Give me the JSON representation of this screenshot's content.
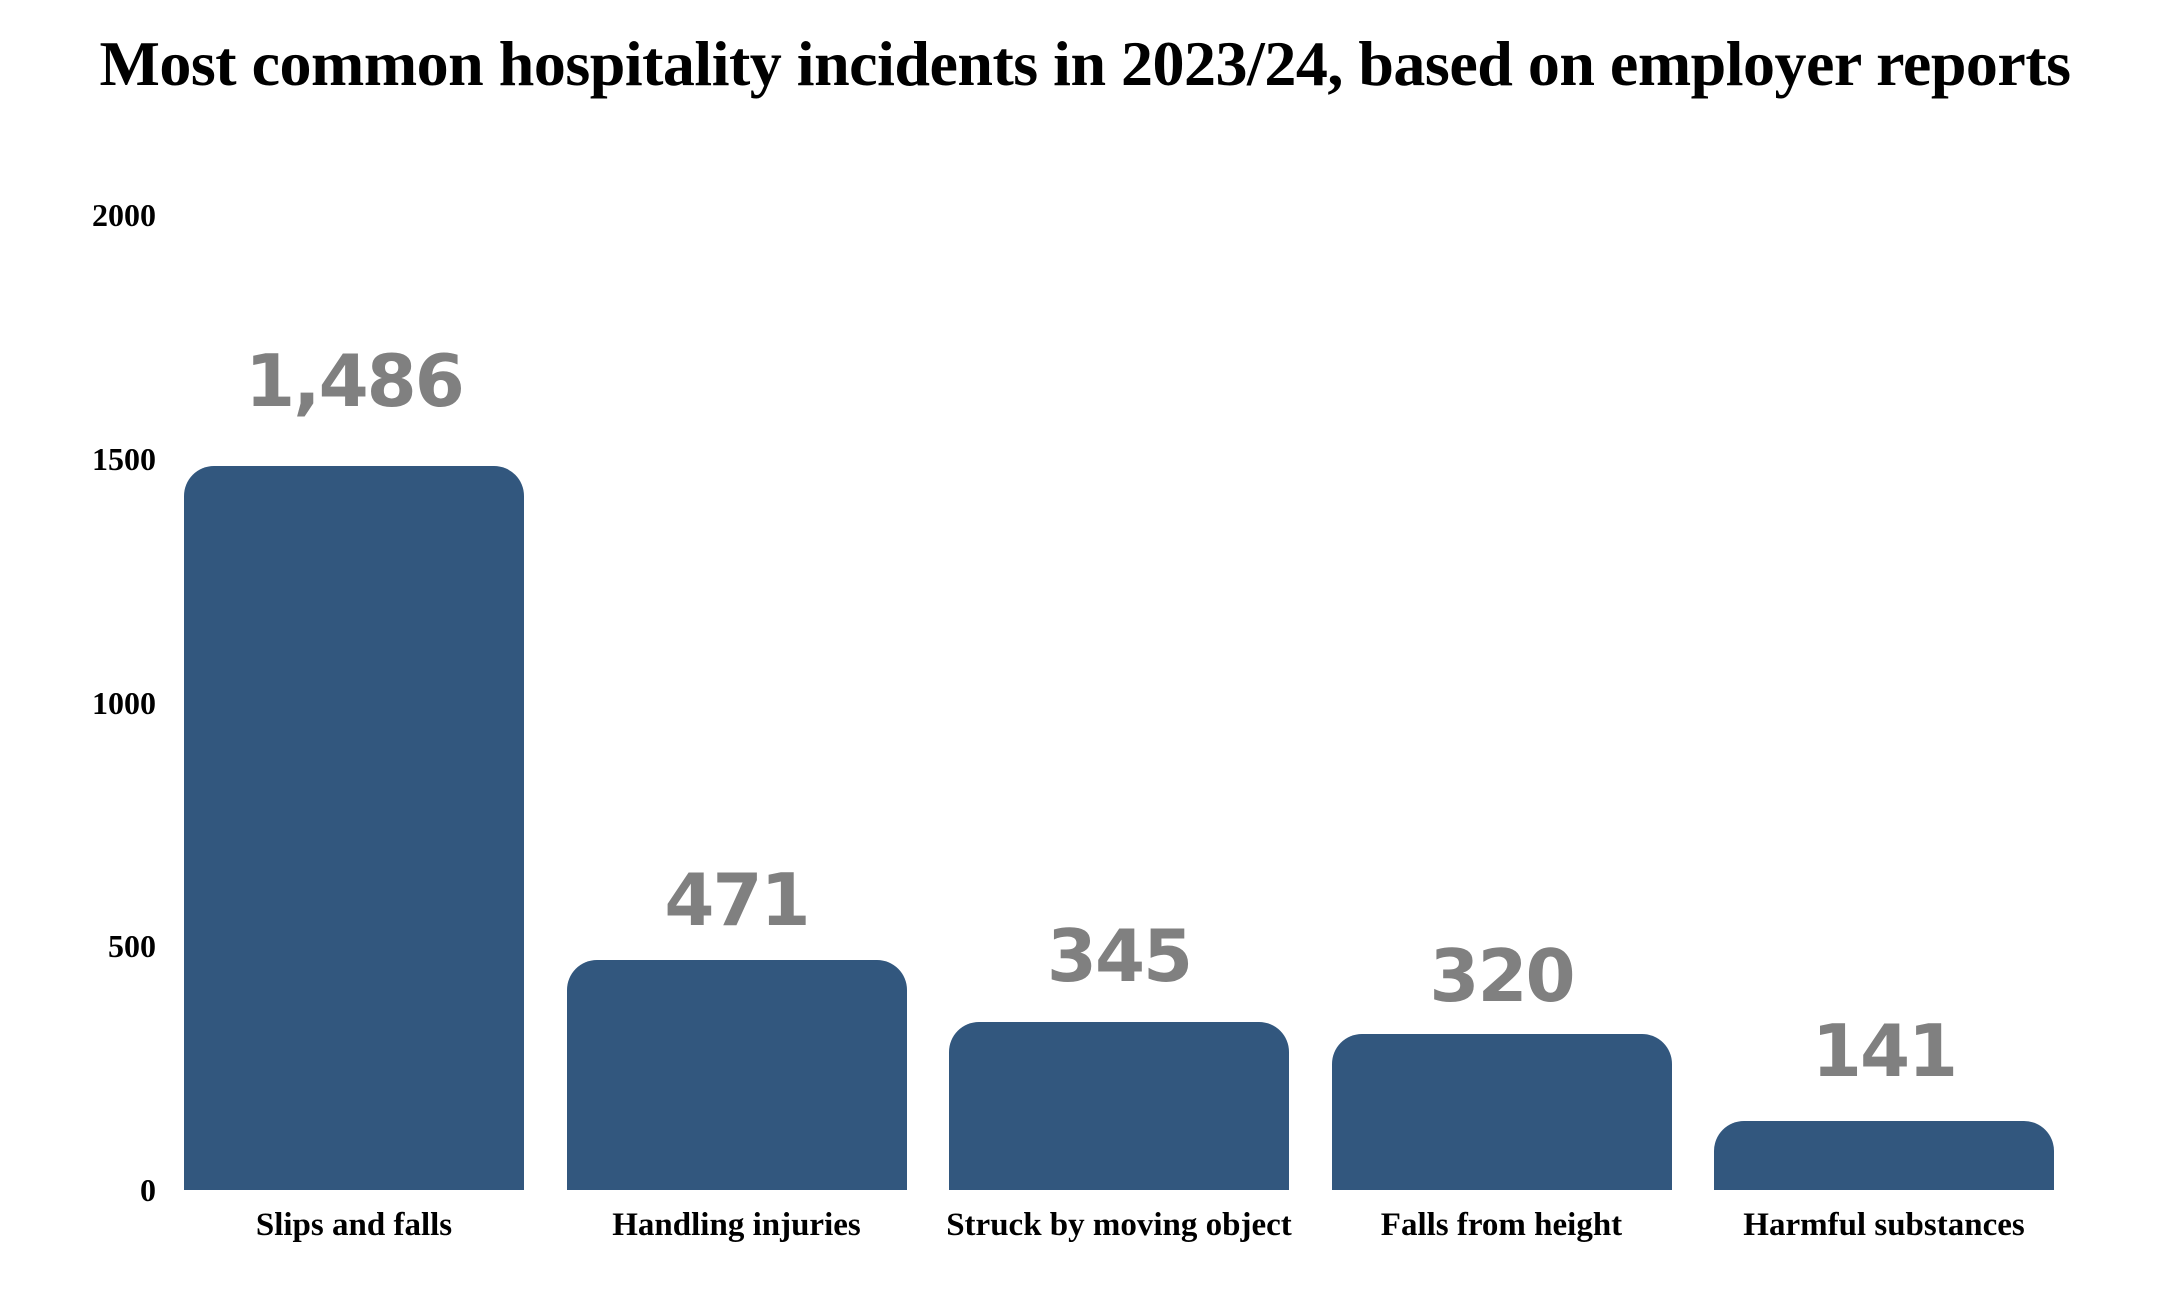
{
  "chart_data": {
    "type": "bar",
    "title": "Most common hospitality incidents in 2023/24, based on employer reports",
    "xlabel": "",
    "ylabel": "",
    "categories": [
      "Slips and falls",
      "Handling injuries",
      "Struck by moving object",
      "Falls from height",
      "Harmful substances"
    ],
    "values": [
      1486,
      471,
      345,
      320,
      141
    ],
    "value_labels": [
      "1,486",
      "471",
      "345",
      "320",
      "141"
    ],
    "ylim": [
      0,
      2000
    ],
    "yticks": [
      0,
      500,
      1000,
      1500,
      2000
    ],
    "ytick_labels": [
      "0",
      "500",
      "1000",
      "1500",
      "2000"
    ],
    "grid": false,
    "legend": null,
    "colors": {
      "bar": "#32577e",
      "value_label": "#808080",
      "text": "#000000",
      "background": "#ffffff"
    }
  }
}
